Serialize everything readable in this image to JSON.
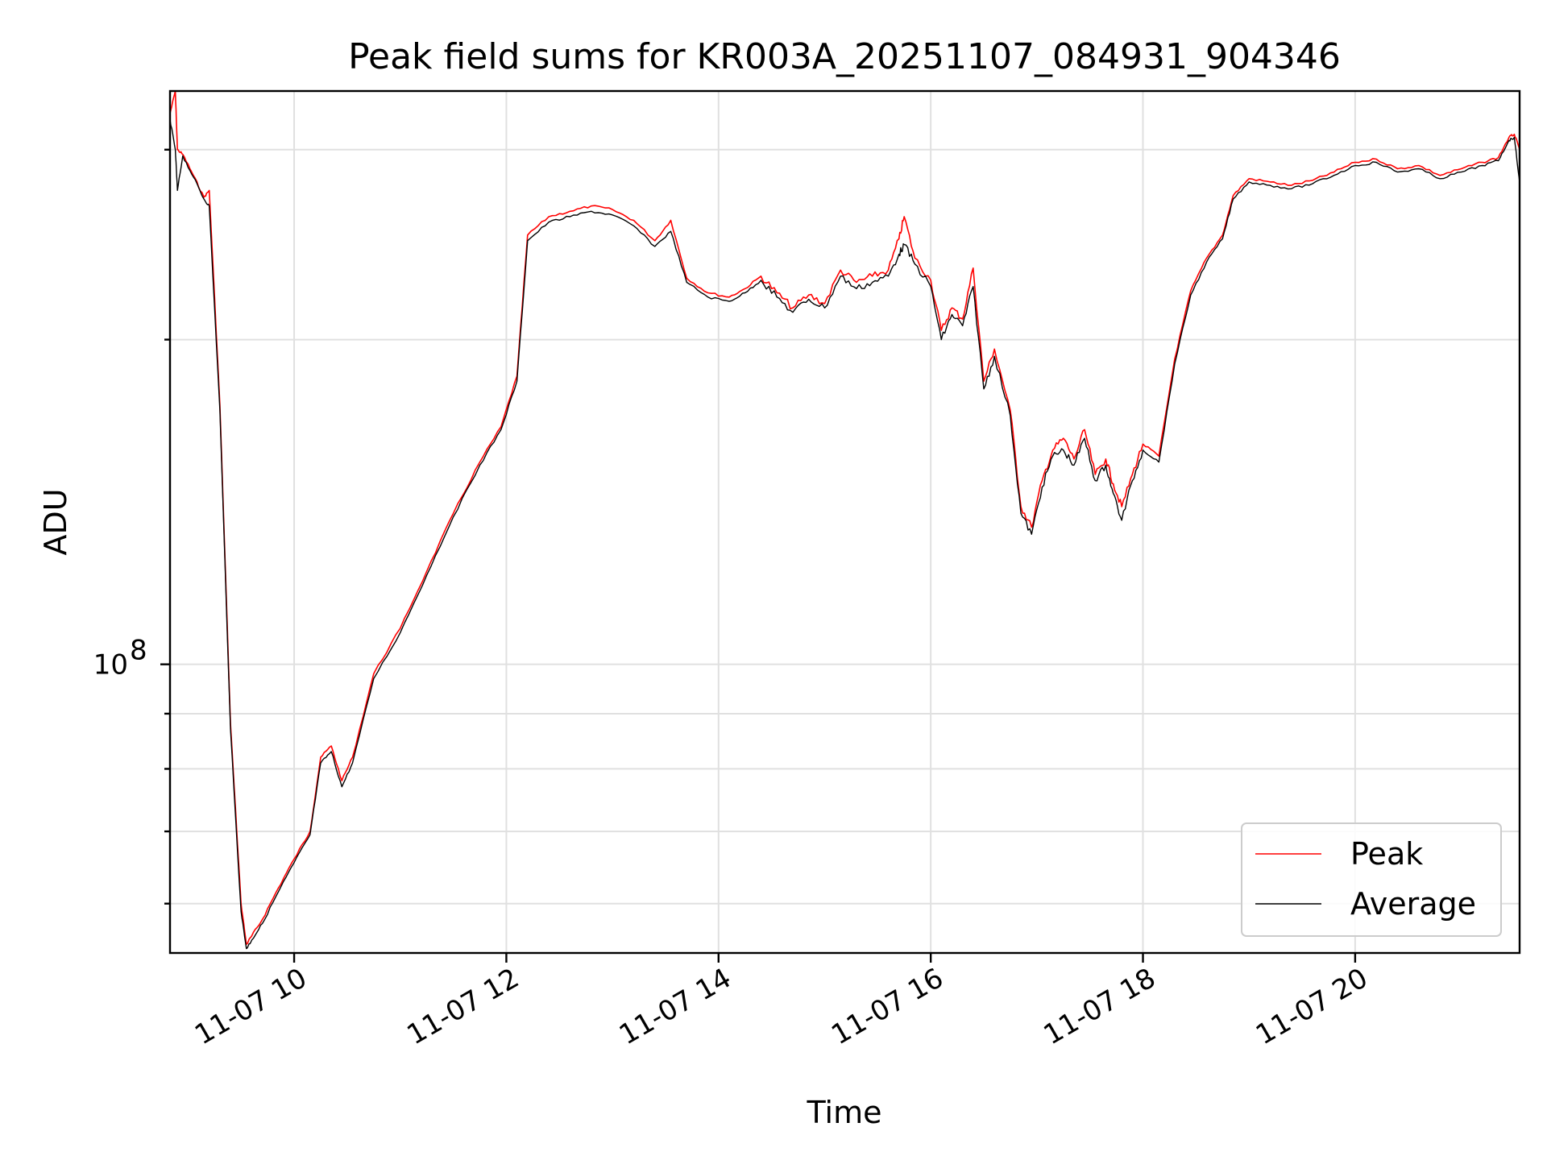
{
  "chart_data": {
    "type": "line",
    "title": "Peak field sums for KR003A_20251107_084931_904346",
    "xlabel": "Time",
    "ylabel": "ADU",
    "x_axis_kind": "time",
    "x_ticks": [
      10,
      12,
      14,
      16,
      18,
      20
    ],
    "x_tick_labels": [
      "11-07 10",
      "11-07 12",
      "11-07 14",
      "11-07 16",
      "11-07 18",
      "11-07 20"
    ],
    "xlim": [
      8.83,
      21.55
    ],
    "y_scale": "log",
    "ylim": [
      54000000,
      340000000
    ],
    "y_major_ticks": [
      100000000
    ],
    "y_major_tick_labels": [
      "10",
      "8"
    ],
    "y_minor_ticks": [
      60000000,
      70000000,
      80000000,
      90000000,
      200000000,
      300000000
    ],
    "grid": true,
    "legend_position": "lower-right",
    "colors": {
      "Peak": "#ff0000",
      "Average": "#000000"
    },
    "series": [
      {
        "name": "Peak",
        "color": "#ff0000",
        "x": [
          8.83,
          8.88,
          8.9,
          8.95,
          9.05,
          9.15,
          9.2,
          9.3,
          9.4,
          9.5,
          9.55,
          9.6,
          9.7,
          9.85,
          10.0,
          10.15,
          10.25,
          10.35,
          10.45,
          10.55,
          10.75,
          11.0,
          11.25,
          11.5,
          11.75,
          11.95,
          12.1,
          12.2,
          12.4,
          12.6,
          12.8,
          13.0,
          13.2,
          13.4,
          13.55,
          13.7,
          13.9,
          14.1,
          14.25,
          14.4,
          14.55,
          14.7,
          14.85,
          15.0,
          15.15,
          15.3,
          15.45,
          15.6,
          15.7,
          15.75,
          15.85,
          16.0,
          16.1,
          16.2,
          16.3,
          16.4,
          16.5,
          16.6,
          16.75,
          16.85,
          16.95,
          17.05,
          17.15,
          17.25,
          17.35,
          17.45,
          17.55,
          17.65,
          17.72,
          17.8,
          17.9,
          18.0,
          18.15,
          18.3,
          18.45,
          18.6,
          18.75,
          18.85,
          19.0,
          19.2,
          19.4,
          19.6,
          19.8,
          20.0,
          20.2,
          20.4,
          20.6,
          20.8,
          21.0,
          21.2,
          21.35,
          21.45,
          21.5,
          21.55
        ],
        "values": [
          324000000,
          340000000,
          300000000,
          297000000,
          284000000,
          271000000,
          275000000,
          174000000,
          88000000,
          60000000,
          55000000,
          56000000,
          58000000,
          62000000,
          66000000,
          70000000,
          82000000,
          84000000,
          78000000,
          82000000,
          98000000,
          108000000,
          122000000,
          138000000,
          154000000,
          166000000,
          185000000,
          250000000,
          260000000,
          263000000,
          266000000,
          264000000,
          258000000,
          247000000,
          258000000,
          228000000,
          221000000,
          219000000,
          223000000,
          229000000,
          221000000,
          214000000,
          220000000,
          216000000,
          232000000,
          226000000,
          229000000,
          232000000,
          248000000,
          260000000,
          238000000,
          227000000,
          204000000,
          214000000,
          209000000,
          233000000,
          183000000,
          196000000,
          172000000,
          140000000,
          134000000,
          148000000,
          158000000,
          162000000,
          155000000,
          165000000,
          150000000,
          155000000,
          147000000,
          140000000,
          150000000,
          160000000,
          156000000,
          192000000,
          222000000,
          238000000,
          250000000,
          272000000,
          282000000,
          280000000,
          278000000,
          281000000,
          286000000,
          292000000,
          294000000,
          288000000,
          290000000,
          284000000,
          288000000,
          292000000,
          295000000,
          308000000,
          310000000,
          300000000
        ]
      },
      {
        "name": "Average",
        "color": "#000000",
        "x": [
          8.83,
          8.88,
          8.9,
          8.95,
          9.05,
          9.15,
          9.2,
          9.3,
          9.4,
          9.5,
          9.55,
          9.6,
          9.7,
          9.85,
          10.0,
          10.15,
          10.25,
          10.35,
          10.45,
          10.55,
          10.75,
          11.0,
          11.25,
          11.5,
          11.75,
          11.95,
          12.1,
          12.2,
          12.4,
          12.6,
          12.8,
          13.0,
          13.2,
          13.4,
          13.55,
          13.7,
          13.9,
          14.1,
          14.25,
          14.4,
          14.55,
          14.7,
          14.85,
          15.0,
          15.15,
          15.3,
          15.45,
          15.6,
          15.7,
          15.75,
          15.85,
          16.0,
          16.1,
          16.2,
          16.3,
          16.4,
          16.5,
          16.6,
          16.75,
          16.85,
          16.95,
          17.05,
          17.15,
          17.25,
          17.35,
          17.45,
          17.55,
          17.65,
          17.72,
          17.8,
          17.9,
          18.0,
          18.15,
          18.3,
          18.45,
          18.6,
          18.75,
          18.85,
          19.0,
          19.2,
          19.4,
          19.6,
          19.8,
          20.0,
          20.2,
          20.4,
          20.6,
          20.8,
          21.0,
          21.2,
          21.35,
          21.45,
          21.5,
          21.55
        ],
        "values": [
          320000000,
          300000000,
          275000000,
          296000000,
          283000000,
          270000000,
          266000000,
          172000000,
          87000000,
          59000000,
          54500000,
          55500000,
          57500000,
          61500000,
          65500000,
          69500000,
          81000000,
          83000000,
          77000000,
          81000000,
          97000000,
          107000000,
          121000000,
          137000000,
          153000000,
          165000000,
          183000000,
          247000000,
          257000000,
          260000000,
          263000000,
          261000000,
          255000000,
          244000000,
          252000000,
          226000000,
          219000000,
          217000000,
          221000000,
          227000000,
          219000000,
          212000000,
          218000000,
          214000000,
          229000000,
          223000000,
          226000000,
          229000000,
          240000000,
          245000000,
          235000000,
          224000000,
          200000000,
          211000000,
          206000000,
          224000000,
          180000000,
          193000000,
          170000000,
          138000000,
          132000000,
          146000000,
          156000000,
          158000000,
          153000000,
          162000000,
          148000000,
          153000000,
          144000000,
          136000000,
          148000000,
          158000000,
          154000000,
          190000000,
          220000000,
          236000000,
          248000000,
          270000000,
          280000000,
          278000000,
          276000000,
          279000000,
          284000000,
          290000000,
          292000000,
          286000000,
          288000000,
          282000000,
          286000000,
          290000000,
          293000000,
          306000000,
          308000000,
          280000000
        ]
      }
    ]
  }
}
